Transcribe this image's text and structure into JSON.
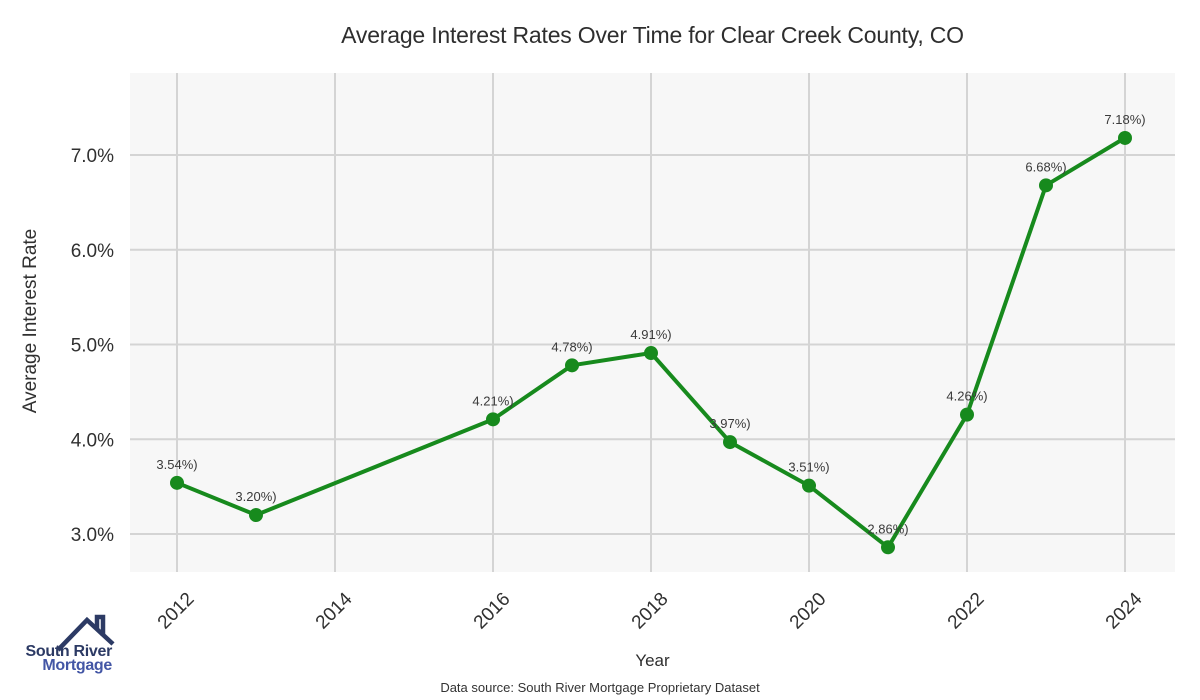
{
  "header": {
    "title": "Average Interest Rates Over Time for Clear Creek County, CO"
  },
  "chart_data": {
    "type": "line",
    "title": "Average Interest Rates Over Time for Clear Creek County, CO",
    "xlabel": "Year",
    "ylabel": "Average Interest Rate",
    "x": [
      2012,
      2013,
      2016,
      2017,
      2018,
      2019,
      2020,
      2021,
      2022,
      2023,
      2024
    ],
    "values": [
      3.54,
      3.2,
      4.21,
      4.78,
      4.91,
      3.97,
      3.51,
      2.86,
      4.26,
      6.68,
      7.18
    ],
    "point_labels": [
      "3.54%)",
      "3.20%)",
      "4.21%)",
      "4.78%)",
      "4.91%)",
      "3.97%)",
      "3.51%)",
      "2.86%)",
      "4.26%)",
      "6.68%)",
      "7.18%)"
    ],
    "x_ticks": [
      2012,
      2014,
      2016,
      2018,
      2020,
      2022,
      2024
    ],
    "y_ticks": [
      {
        "value": 3,
        "label": "3.0%"
      },
      {
        "value": 4,
        "label": "4.0%"
      },
      {
        "value": 5,
        "label": "5.0%"
      },
      {
        "value": 6,
        "label": "6.0%"
      },
      {
        "value": 7,
        "label": "7.0%"
      }
    ],
    "xlim": [
      2011.4,
      2024.6
    ],
    "ylim": [
      2.6,
      7.9
    ],
    "grid": true,
    "legend": "none",
    "marker": "circle",
    "line_color": "#178a1d"
  },
  "footer": {
    "source": "Data source: South River Mortgage Proprietary Dataset"
  },
  "logo": {
    "line1": "South River",
    "line2": "Mortgage",
    "icon": "house-roof-icon",
    "color_primary": "#2c3a64",
    "color_secondary": "#4356a5"
  },
  "colors": {
    "line": "#178a1d",
    "plot_background": "#f7f7f7",
    "gridline": "#d4d4d4",
    "tick_text": "#303030",
    "point_label_text": "#3a3a3a",
    "title_text": "#2e2e2e"
  }
}
